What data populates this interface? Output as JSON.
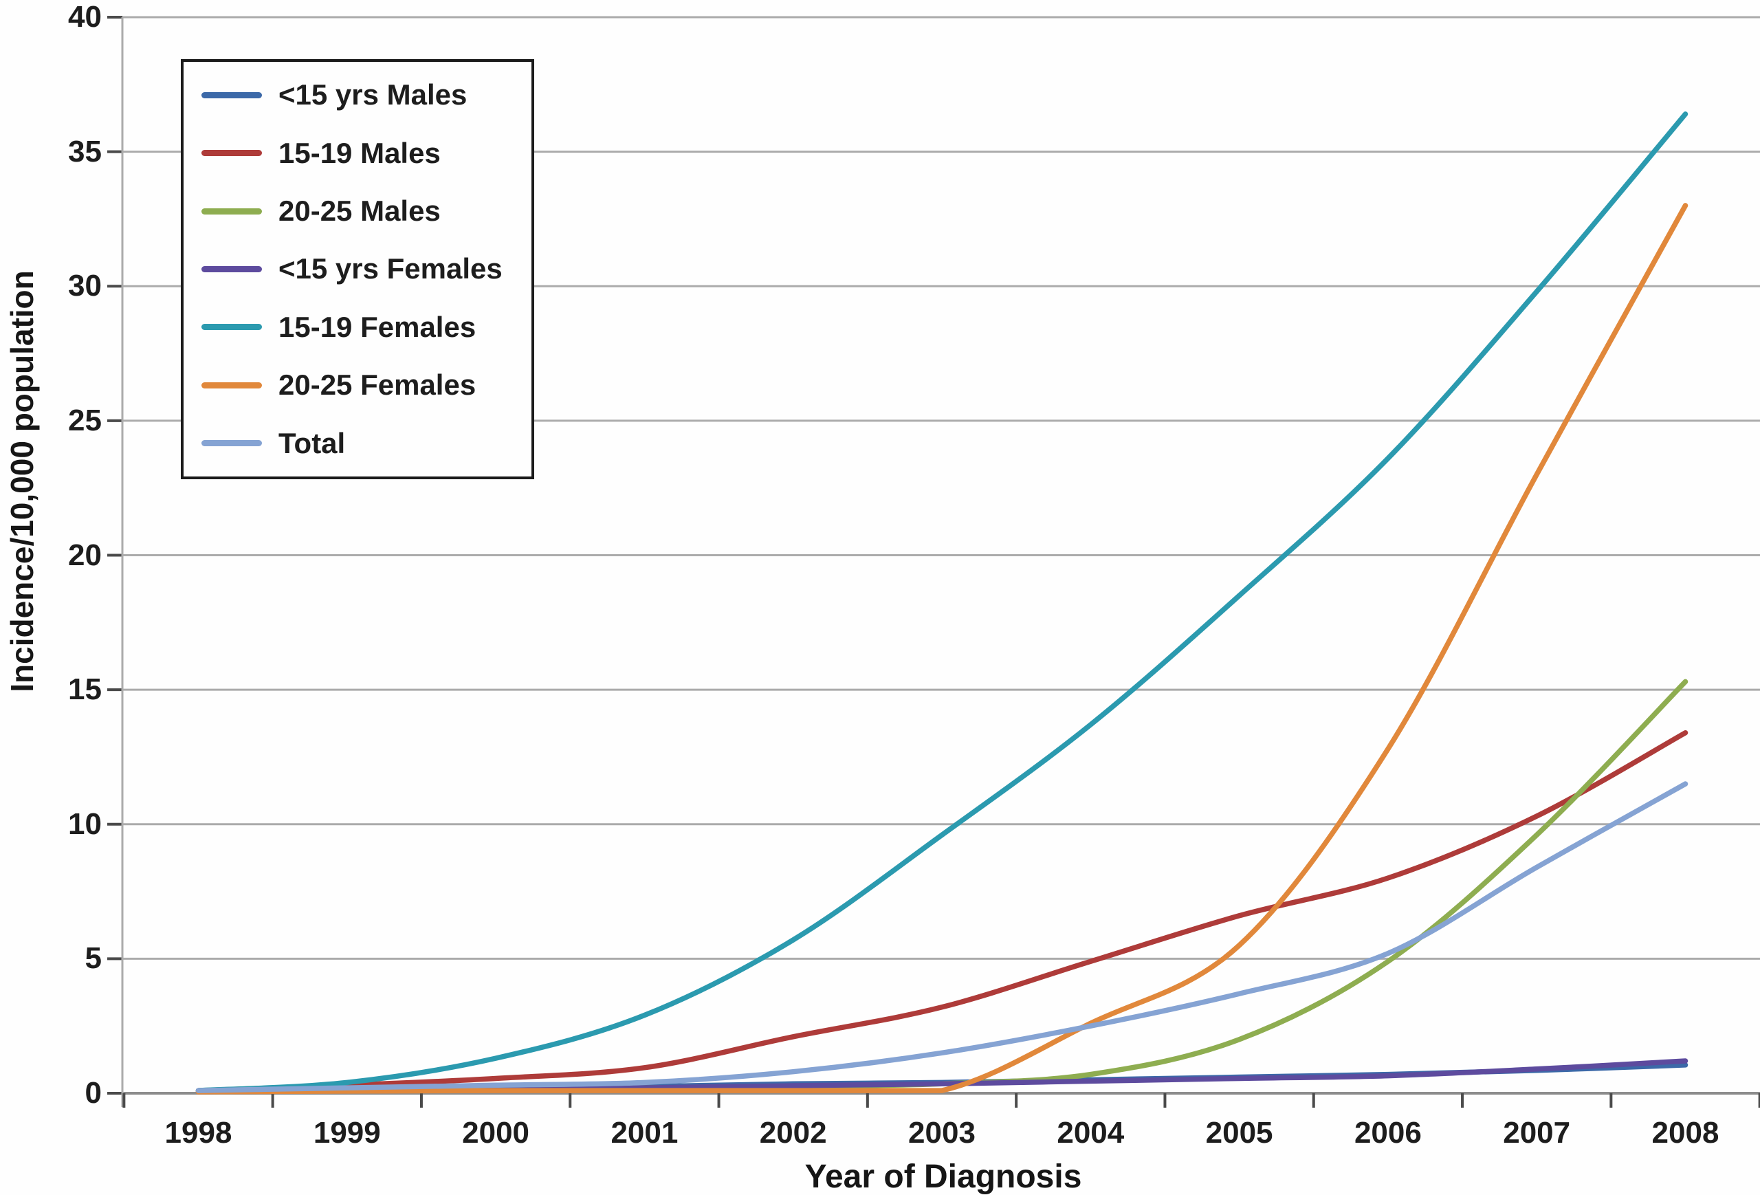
{
  "axes": {
    "y_title": "Incidence/10,000 population",
    "x_title": "Year of Diagnosis"
  },
  "colors": {
    "background": "#fefefe",
    "gridline": "#ababab",
    "axis_line": "#8c8c8c",
    "tick_mark": "#4a4a4a",
    "text": "#1d1d1d",
    "legend_border": "#1b1b1b"
  },
  "chart_data": {
    "type": "line",
    "title": "",
    "xlabel": "Year of Diagnosis",
    "ylabel": "Incidence/10,000 population",
    "x": [
      1998,
      1999,
      2000,
      2001,
      2002,
      2003,
      2004,
      2005,
      2006,
      2007,
      2008
    ],
    "y_ticks": [
      0,
      5,
      10,
      15,
      20,
      25,
      30,
      35,
      40
    ],
    "ylim": [
      0,
      40
    ],
    "grid": true,
    "legend_position": "upper-left",
    "series": [
      {
        "name": "<15 yrs Males",
        "color": "#3c69a8",
        "values": [
          0.1,
          0.15,
          0.2,
          0.25,
          0.35,
          0.4,
          0.5,
          0.6,
          0.7,
          0.85,
          1.05
        ]
      },
      {
        "name": "15-19 Males",
        "color": "#ae3b39",
        "values": [
          0.1,
          0.3,
          0.55,
          0.95,
          2.1,
          3.2,
          4.9,
          6.6,
          8.0,
          10.3,
          13.4
        ]
      },
      {
        "name": "20-25 Males",
        "color": "#8ead50",
        "values": [
          0.05,
          0.1,
          0.15,
          0.2,
          0.25,
          0.35,
          0.7,
          2.0,
          4.9,
          9.6,
          15.3
        ]
      },
      {
        "name": "<15 yrs Females",
        "color": "#5d4b9e",
        "values": [
          0.05,
          0.1,
          0.15,
          0.2,
          0.28,
          0.35,
          0.45,
          0.55,
          0.65,
          0.9,
          1.2
        ]
      },
      {
        "name": "15-19 Females",
        "color": "#2b9aaf",
        "values": [
          0.1,
          0.4,
          1.3,
          2.9,
          5.7,
          9.6,
          13.7,
          18.5,
          23.6,
          29.8,
          36.4
        ]
      },
      {
        "name": "20-25 Females",
        "color": "#e1883b",
        "values": [
          0.05,
          0.08,
          0.1,
          0.1,
          0.1,
          0.1,
          2.6,
          5.5,
          12.8,
          23.0,
          33.0
        ]
      },
      {
        "name": "Total",
        "color": "#85a3d3",
        "values": [
          0.1,
          0.2,
          0.3,
          0.4,
          0.8,
          1.5,
          2.5,
          3.7,
          5.2,
          8.4,
          11.5
        ]
      }
    ]
  }
}
